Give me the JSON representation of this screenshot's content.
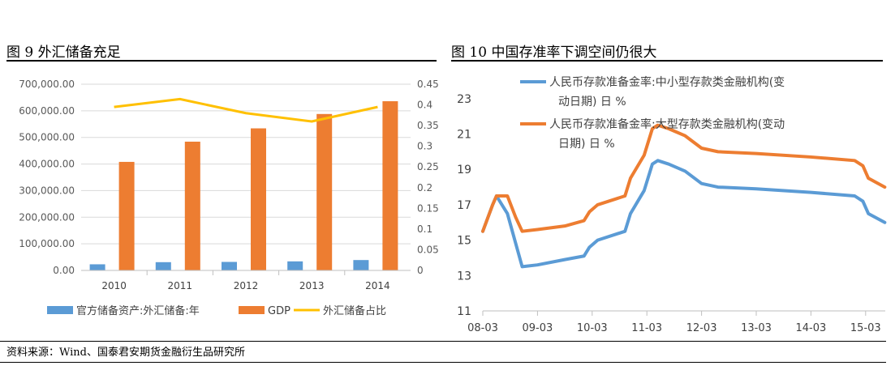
{
  "left_title": "图 9  外汇储备充足",
  "right_title": "图 10  中国存准率下调空间仍很大",
  "source": "资料来源：Wind、国泰君安期货金融衍生品研究所",
  "colors": {
    "blue": "#5B9BD5",
    "orange": "#ED7D31",
    "yellow": "#FFC000",
    "grid": "#d9d9d9",
    "axis_text": "#595959"
  },
  "chart_data": [
    {
      "type": "bar",
      "title": "图 9  外汇储备充足",
      "categories": [
        "2010",
        "2011",
        "2012",
        "2013",
        "2014"
      ],
      "left_axis": {
        "ylim": [
          0,
          700000
        ],
        "ticks": [
          "0.00",
          "100,000.00",
          "200,000.00",
          "300,000.00",
          "400,000.00",
          "500,000.00",
          "600,000.00",
          "700,000.00"
        ]
      },
      "right_axis": {
        "ylim": [
          0,
          0.45
        ],
        "ticks": [
          "0",
          "0.05",
          "0.1",
          "0.15",
          "0.2",
          "0.25",
          "0.3",
          "0.35",
          "0.4",
          "0.45"
        ]
      },
      "series": [
        {
          "name": "官方储备资产:外汇储备:年",
          "type": "bar",
          "axis": "left",
          "color": "#5B9BD5",
          "values": [
            23000,
            31000,
            32000,
            34000,
            39000
          ]
        },
        {
          "name": "GDP",
          "type": "bar",
          "axis": "left",
          "color": "#ED7D31",
          "values": [
            408000,
            484000,
            534000,
            588000,
            636000
          ]
        },
        {
          "name": "外汇储备占比",
          "type": "line",
          "axis": "right",
          "color": "#FFC000",
          "values": [
            0.395,
            0.414,
            0.38,
            0.36,
            0.395
          ]
        }
      ]
    },
    {
      "type": "line",
      "title": "图 10  中国存准率下调空间仍很大",
      "ylim": [
        11,
        24
      ],
      "yticks": [
        "11",
        "13",
        "15",
        "17",
        "19",
        "21",
        "23"
      ],
      "xticks": [
        "08-03",
        "09-03",
        "10-03",
        "11-03",
        "12-03",
        "13-03",
        "14-03",
        "15-03"
      ],
      "xunit": "years since 2008-03",
      "series": [
        {
          "name": "人民币存款准备金率:中小型存款类金融机构(变动日期) 日 %",
          "legend_lines": [
            "人民币存款准备金率:中小型存款类金融机构(变",
            "动日期)  日  %"
          ],
          "color": "#5B9BD5",
          "points": [
            [
              0,
              15.5
            ],
            [
              0.18,
              17.0
            ],
            [
              0.25,
              17.5
            ],
            [
              0.45,
              16.5
            ],
            [
              0.72,
              13.5
            ],
            [
              1.0,
              13.6
            ],
            [
              1.5,
              13.9
            ],
            [
              1.85,
              14.1
            ],
            [
              1.95,
              14.6
            ],
            [
              2.1,
              15.0
            ],
            [
              2.6,
              15.5
            ],
            [
              2.7,
              16.5
            ],
            [
              2.95,
              17.8
            ],
            [
              3.1,
              19.3
            ],
            [
              3.2,
              19.5
            ],
            [
              3.4,
              19.3
            ],
            [
              3.7,
              18.9
            ],
            [
              4.0,
              18.2
            ],
            [
              4.3,
              18.0
            ],
            [
              5.0,
              17.9
            ],
            [
              6.0,
              17.7
            ],
            [
              6.8,
              17.5
            ],
            [
              6.95,
              17.2
            ],
            [
              7.05,
              16.5
            ],
            [
              7.35,
              16.0
            ]
          ]
        },
        {
          "name": "人民币存款准备金率:大型存款类金融机构(变动日期) 日 %",
          "legend_lines": [
            "人民币存款准备金率:大型存款类金融机构(变动",
            "日期)  日  %"
          ],
          "color": "#ED7D31",
          "points": [
            [
              0,
              15.5
            ],
            [
              0.18,
              17.0
            ],
            [
              0.25,
              17.5
            ],
            [
              0.45,
              17.5
            ],
            [
              0.6,
              16.3
            ],
            [
              0.72,
              15.5
            ],
            [
              1.0,
              15.6
            ],
            [
              1.5,
              15.8
            ],
            [
              1.85,
              16.1
            ],
            [
              1.95,
              16.6
            ],
            [
              2.1,
              17.0
            ],
            [
              2.6,
              17.5
            ],
            [
              2.7,
              18.5
            ],
            [
              2.95,
              19.8
            ],
            [
              3.1,
              21.3
            ],
            [
              3.2,
              21.5
            ],
            [
              3.4,
              21.3
            ],
            [
              3.7,
              20.9
            ],
            [
              4.0,
              20.2
            ],
            [
              4.3,
              20.0
            ],
            [
              5.0,
              19.9
            ],
            [
              6.0,
              19.7
            ],
            [
              6.8,
              19.5
            ],
            [
              6.95,
              19.2
            ],
            [
              7.05,
              18.5
            ],
            [
              7.35,
              18.0
            ]
          ]
        }
      ]
    }
  ]
}
